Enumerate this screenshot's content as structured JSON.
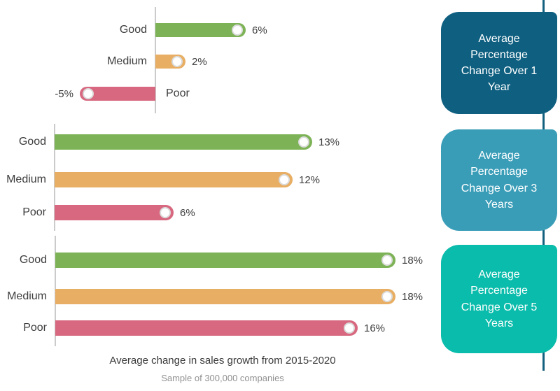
{
  "colors": {
    "good": "#7db356",
    "medium": "#e8ae63",
    "poor": "#d7687f",
    "panel1": "#0e5f80",
    "panel2": "#3a9db8",
    "panel3": "#0abcab",
    "timeline": "#14607f",
    "axis": "#cbcbcb"
  },
  "caption": {
    "title": "Average change in sales growth from 2015-2020",
    "subtitle": "Sample of 300,000 companies"
  },
  "panels": [
    {
      "label": "Average Percentage Change Over 1 Year"
    },
    {
      "label": "Average Percentage Change Over 3 Years"
    },
    {
      "label": "Average Percentage Change Over 5 Years"
    }
  ],
  "chart_data": [
    {
      "type": "bar",
      "group": "Average Percentage Change Over 1 Year",
      "categories": [
        "Good",
        "Medium",
        "Poor"
      ],
      "values": [
        6,
        2,
        -5
      ],
      "value_labels": [
        "6%",
        "2%",
        "-5%"
      ],
      "unit": "percent",
      "xlim": [
        -5,
        8
      ],
      "orientation": "horizontal"
    },
    {
      "type": "bar",
      "group": "Average Percentage Change Over 3 Years",
      "categories": [
        "Good",
        "Medium",
        "Poor"
      ],
      "values": [
        13,
        12,
        6
      ],
      "value_labels": [
        "13%",
        "12%",
        "6%"
      ],
      "unit": "percent",
      "xlim": [
        0,
        14
      ],
      "orientation": "horizontal"
    },
    {
      "type": "bar",
      "group": "Average Percentage Change Over 5 Years",
      "categories": [
        "Good",
        "Medium",
        "Poor"
      ],
      "values": [
        18,
        18,
        16
      ],
      "value_labels": [
        "18%",
        "18%",
        "16%"
      ],
      "unit": "percent",
      "xlim": [
        0,
        19
      ],
      "orientation": "horizontal"
    }
  ]
}
